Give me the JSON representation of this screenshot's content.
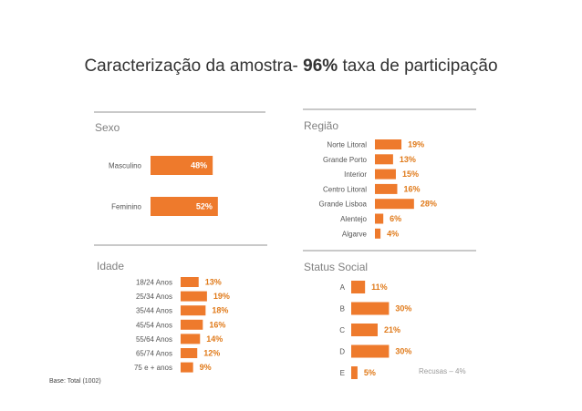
{
  "title": {
    "prefix": "Caracterização da amostra-",
    "highlight": "96%",
    "suffix": "taxa de participação"
  },
  "footnote": "Base: Total (1002)",
  "colors": {
    "bar": "#ee7a2c",
    "bar_light": "#f4a066",
    "value_label": "#e07a1a",
    "category_label": "#555555"
  },
  "chart_data": [
    {
      "type": "bar",
      "orientation": "horizontal",
      "title": "Sexo",
      "categories": [
        "Masculino",
        "Feminino"
      ],
      "values": [
        48,
        52
      ],
      "value_labels": [
        "48%",
        "52%"
      ],
      "label_position": "inside"
    },
    {
      "type": "bar",
      "orientation": "horizontal",
      "title": "Região",
      "categories": [
        "Norte Litoral",
        "Grande Porto",
        "Interior",
        "Centro Litoral",
        "Grande Lisboa",
        "Alentejo",
        "Algarve"
      ],
      "values": [
        19,
        13,
        15,
        16,
        28,
        6,
        4
      ],
      "value_labels": [
        "19%",
        "13%",
        "15%",
        "16%",
        "28%",
        "6%",
        "4%"
      ],
      "label_position": "outside"
    },
    {
      "type": "bar",
      "orientation": "horizontal",
      "title": "Idade",
      "categories": [
        "18/24 Anos",
        "25/34 Anos",
        "35/44 Anos",
        "45/54 Anos",
        "55/64 Anos",
        "65/74 Anos",
        "75 e +   anos"
      ],
      "values": [
        13,
        19,
        18,
        16,
        14,
        12,
        9
      ],
      "value_labels": [
        "13%",
        "19%",
        "18%",
        "16%",
        "14%",
        "12%",
        "9%"
      ],
      "label_position": "outside"
    },
    {
      "type": "bar",
      "orientation": "horizontal",
      "title": "Status Social",
      "categories": [
        "A",
        "B",
        "C",
        "D",
        "E"
      ],
      "values": [
        11,
        30,
        21,
        30,
        5
      ],
      "value_labels": [
        "11%",
        "30%",
        "21%",
        "30%",
        "5%"
      ],
      "label_position": "outside",
      "annotation": "Recusas – 4%"
    }
  ]
}
